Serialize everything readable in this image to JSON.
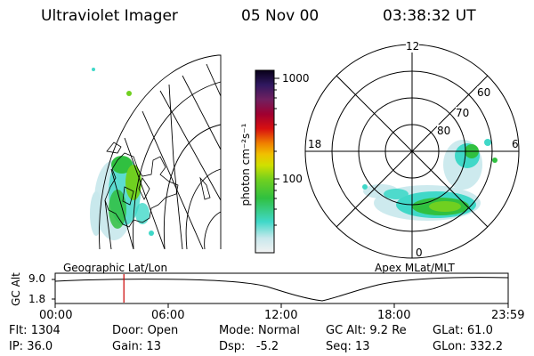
{
  "header": {
    "instrument": "Ultraviolet Imager",
    "date": "05 Nov 00",
    "time": "03:38:32 UT"
  },
  "geo_panel": {
    "label": "Geographic Lat/Lon"
  },
  "mag_panel": {
    "label": "Apex MLat/MLT",
    "mlt_labels": {
      "top": "12",
      "left": "18",
      "right": "6",
      "bottom": "0"
    },
    "lat_labels": [
      "60",
      "70",
      "80"
    ]
  },
  "colorbar": {
    "unit_label": "photon cm⁻²s⁻¹",
    "ticks": [
      "1000",
      "100"
    ]
  },
  "timeline": {
    "axis_label": "GC Alt",
    "y_ticks": [
      "9.0",
      "1.8"
    ],
    "x_ticks": [
      "00:00",
      "06:00",
      "12:00",
      "18:00",
      "23:59"
    ],
    "marker_time_hours": 3.64
  },
  "status": {
    "row1": [
      {
        "key": "Flt:",
        "value": "1304"
      },
      {
        "key": "Door:",
        "value": "Open"
      },
      {
        "key": "Mode:",
        "value": "Normal"
      },
      {
        "key": "GC Alt:",
        "value": "9.2 Re"
      },
      {
        "key": "GLat:",
        "value": "61.0"
      }
    ],
    "row2": [
      {
        "key": "IP:",
        "value": "36.0"
      },
      {
        "key": "Gain:",
        "value": "13"
      },
      {
        "key": "Dsp:",
        "value": "-5.2"
      },
      {
        "key": "Seq:",
        "value": "13"
      },
      {
        "key": "GLon:",
        "value": "332.2"
      }
    ]
  },
  "colors": {
    "marker": "#cc0000"
  }
}
